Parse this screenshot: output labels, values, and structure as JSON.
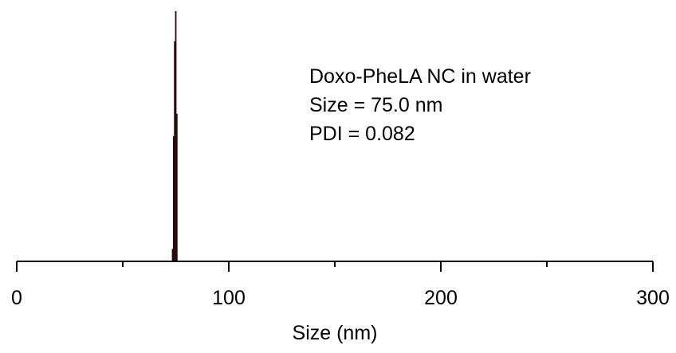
{
  "chart_data": {
    "type": "bar",
    "title": "",
    "xlabel": "Size (nm)",
    "ylabel": "",
    "xlim": [
      0,
      300
    ],
    "ylim": [
      0,
      1
    ],
    "x_ticks": [
      0,
      100,
      200,
      300
    ],
    "x_tick_labels": [
      "0",
      "100",
      "200",
      "300"
    ],
    "x_minor_ticks": [
      50,
      150,
      250
    ],
    "y_axis_visible": false,
    "grid": false,
    "legend": "none",
    "bar_color": "#2b0a0a",
    "series": [
      {
        "x": [
          73.5,
          74.0,
          74.5,
          75.0,
          75.5
        ],
        "values": [
          0.05,
          0.5,
          0.88,
          1.0,
          0.59
        ]
      }
    ],
    "annotations": [
      "Doxo-PheLA NC in water",
      "Size = 75.0 nm",
      "PDI = 0.082"
    ]
  }
}
